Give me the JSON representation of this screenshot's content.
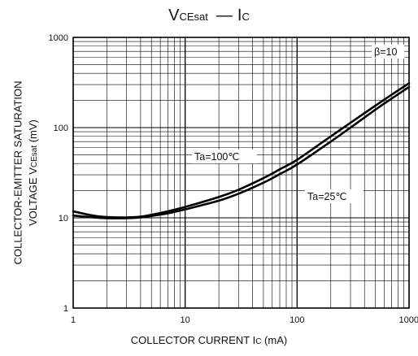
{
  "title": {
    "main_v": "V",
    "sub_v": "CEsat",
    "dash": "—",
    "main_i": "I",
    "sub_i": "C"
  },
  "chart_data": {
    "type": "line",
    "x_scale": "log",
    "y_scale": "log",
    "xlim": [
      1,
      1000
    ],
    "ylim": [
      1,
      1000
    ],
    "x_ticks": [
      "1",
      "10",
      "100",
      "1000"
    ],
    "y_ticks": [
      "1",
      "10",
      "100",
      "1000"
    ],
    "grid": true,
    "xlabel": {
      "pre": "COLLECTOR CURRENT  I",
      "sub": "C",
      "post": " (mA)"
    },
    "ylabel_line1": "COLLECTOR-EMITTER SATURATION",
    "ylabel_line2": {
      "pre": "VOLTAGE  V",
      "sub": "CEsat",
      "post": " (mV)"
    },
    "condition_label": "β=10",
    "series": [
      {
        "name": "Ta=100℃",
        "x": [
          1,
          1.5,
          2,
          3,
          4,
          5,
          7,
          10,
          20,
          30,
          50,
          70,
          100,
          200,
          300,
          500,
          700,
          1000
        ],
        "y": [
          11.8,
          10.6,
          10.2,
          10.1,
          10.3,
          10.8,
          11.8,
          13.2,
          17,
          20.5,
          27.5,
          34.5,
          44,
          80,
          113,
          175,
          232,
          310
        ]
      },
      {
        "name": "Ta=25℃",
        "x": [
          1,
          1.5,
          2,
          3,
          4,
          5,
          7,
          10,
          20,
          30,
          50,
          70,
          100,
          200,
          300,
          500,
          700,
          1000
        ],
        "y": [
          10.6,
          10.1,
          9.9,
          9.9,
          10.1,
          10.5,
          11.2,
          12.4,
          15.5,
          18.5,
          24.5,
          30.5,
          39,
          70,
          100,
          158,
          210,
          282
        ]
      }
    ]
  }
}
